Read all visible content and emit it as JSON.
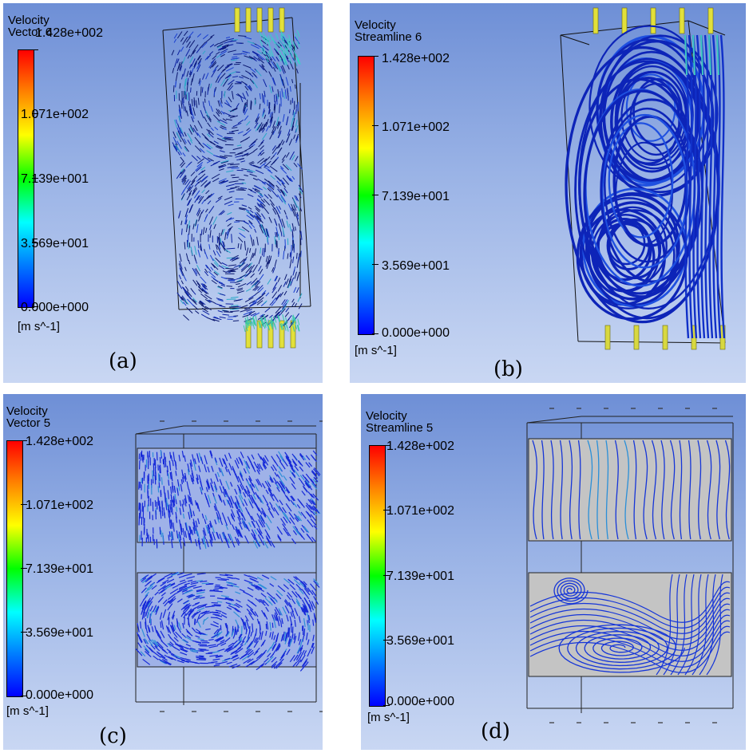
{
  "panels": [
    {
      "id": "a",
      "title_line1": "Velocity",
      "title_line2": "Vector 6",
      "label": "(a)",
      "view": "3d-vector"
    },
    {
      "id": "b",
      "title_line1": "Velocity",
      "title_line2": "Streamline 6",
      "label": "(b)",
      "view": "3d-streamline"
    },
    {
      "id": "c",
      "title_line1": "Velocity",
      "title_line2": "Vector 5",
      "label": "(c)",
      "view": "section-vector"
    },
    {
      "id": "d",
      "title_line1": "Velocity",
      "title_line2": "Streamline 5",
      "label": "(d)",
      "view": "section-streamline"
    }
  ],
  "colorbar": {
    "labels": [
      "1.428e+002",
      "1.071e+002",
      "7.139e+001",
      "3.569e+001",
      "0.000e+000"
    ],
    "unit": "[m s^-1]",
    "colors": [
      "#ff0000",
      "#ff8000",
      "#ffff00",
      "#00ff00",
      "#00ffff",
      "#0080ff",
      "#0000ff"
    ]
  }
}
